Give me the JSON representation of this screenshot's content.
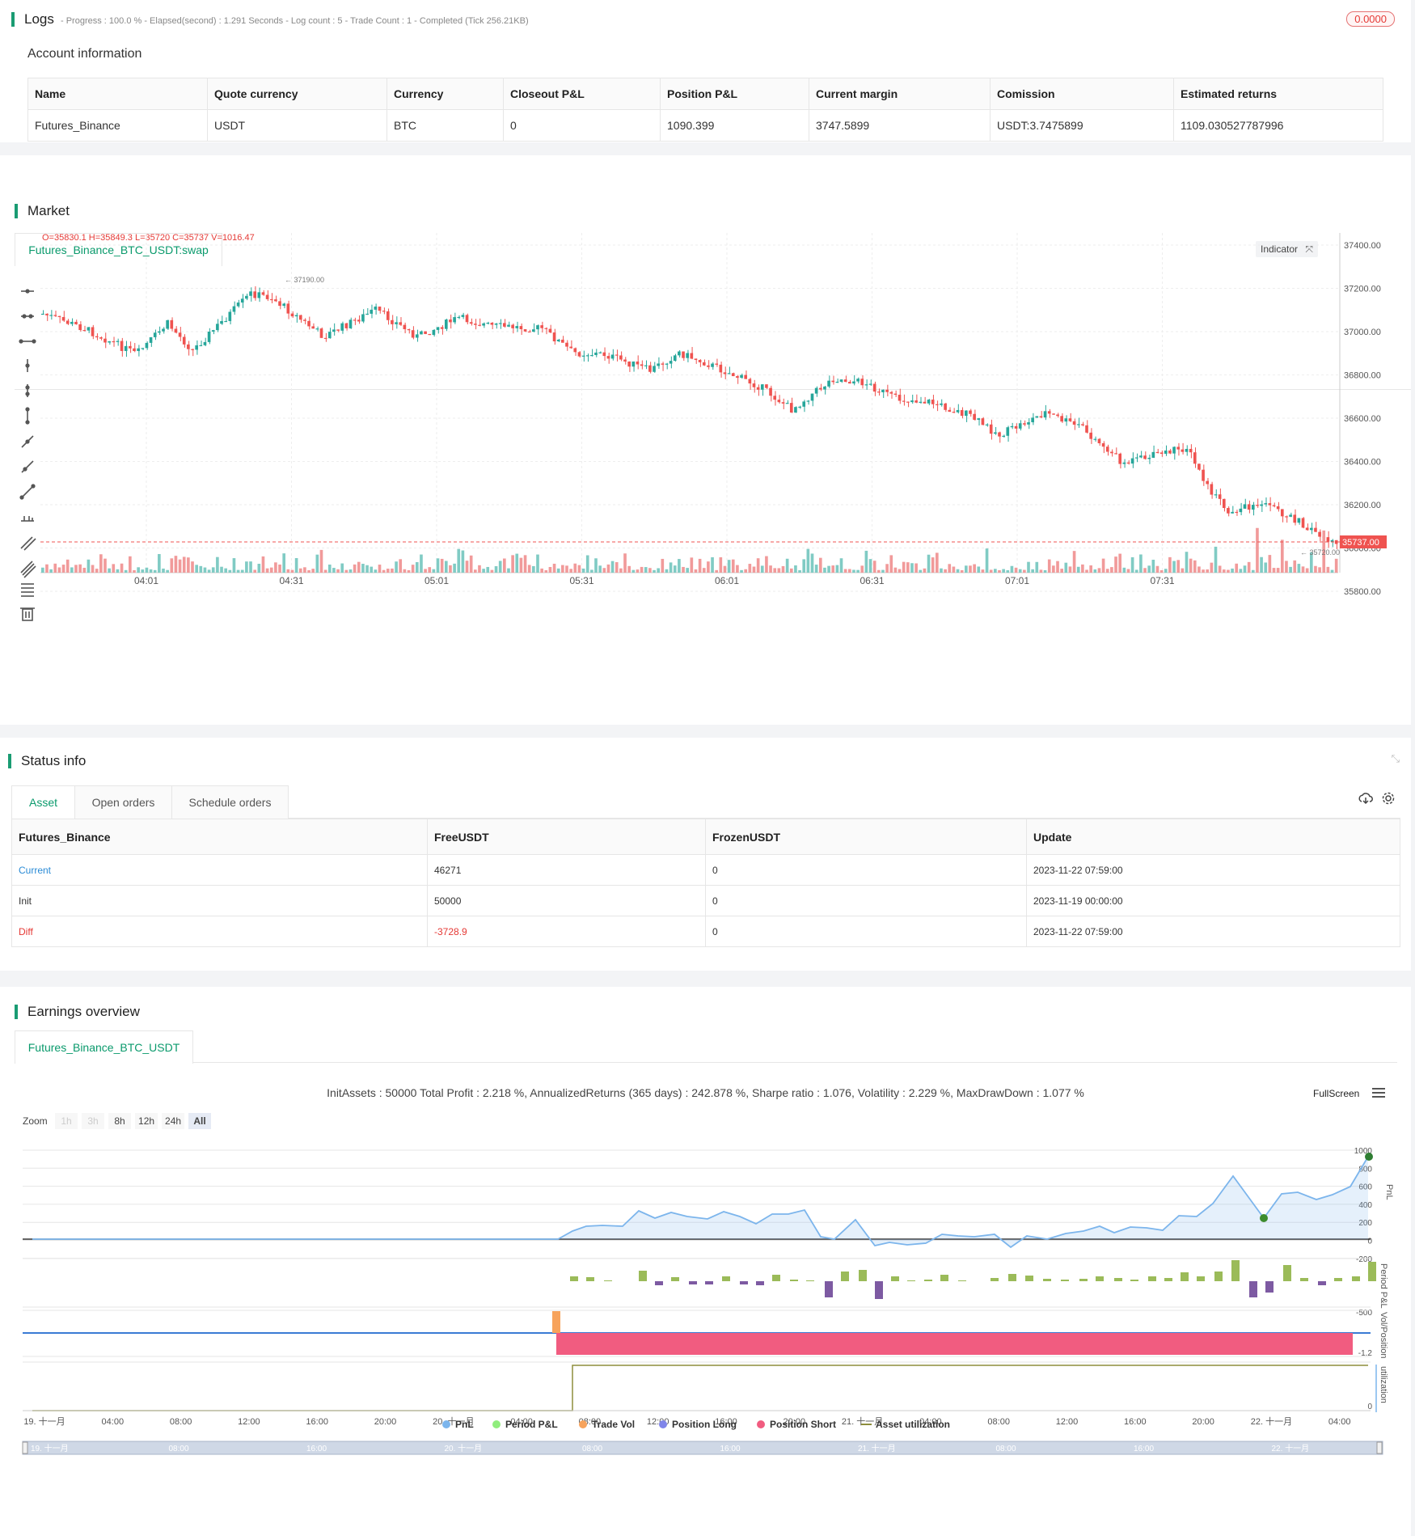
{
  "logs": {
    "title": "Logs",
    "progress": "- Progress : 100.0 % - Elapsed(second) : 1.291  Seconds - Log count : 5 - Trade Count : 1 - Completed (Tick 256.21KB)",
    "badge": "0.0000"
  },
  "account": {
    "title": "Account information",
    "headers": [
      "Name",
      "Quote currency",
      "Currency",
      "Closeout P&L",
      "Position P&L",
      "Current margin",
      "Comission",
      "Estimated returns"
    ],
    "row": [
      "Futures_Binance",
      "USDT",
      "BTC",
      "0",
      "1090.399",
      "3747.5899",
      "USDT:3.7475899",
      "1109.030527787996"
    ]
  },
  "market": {
    "title": "Market",
    "tab": "Futures_Binance_BTC_USDT:swap",
    "ohlc": "O=35830.1 H=35849.3 L=35720 C=35737 V=1016.47",
    "indicator_label": "Indicator",
    "high_label": "37190.00",
    "low_label": "35720.00",
    "current_price": "35737.00",
    "y_ticks": [
      "37400.00",
      "37200.00",
      "37000.00",
      "36800.00",
      "36600.00",
      "36400.00",
      "36200.00",
      "36000.00",
      "35800.00"
    ],
    "x_ticks": [
      "04:01",
      "04:31",
      "05:01",
      "05:31",
      "06:01",
      "06:31",
      "07:01",
      "07:31"
    ],
    "colors": {
      "up": "#26a69a",
      "down": "#ef5350",
      "up_vol": "#80cbc4",
      "down_vol": "#f19a9a"
    }
  },
  "status": {
    "title": "Status info",
    "tabs": [
      "Asset",
      "Open orders",
      "Schedule orders"
    ],
    "headers": [
      "Futures_Binance",
      "FreeUSDT",
      "FrozenUSDT",
      "Update"
    ],
    "rows": [
      [
        "Current",
        "46271",
        "0",
        "2023-11-22 07:59:00"
      ],
      [
        "Init",
        "50000",
        "0",
        "2023-11-19 00:00:00"
      ],
      [
        "Diff",
        "-3728.9",
        "0",
        "2023-11-22 07:59:00"
      ]
    ]
  },
  "earnings": {
    "title": "Earnings overview",
    "tab": "Futures_Binance_BTC_USDT",
    "summary": "InitAssets : 50000 Total Profit : 2.218 %, AnnualizedReturns (365 days) : 242.878 %, Sharpe ratio : 1.076, Volatility : 2.229 %, MaxDrawDown : 1.077 %",
    "fullscreen": "FullScreen",
    "zoom_label": "Zoom",
    "zoom_buttons": [
      "1h",
      "3h",
      "8h",
      "12h",
      "24h",
      "All"
    ],
    "pnl_ticks": [
      "1000",
      "800",
      "600",
      "400",
      "200",
      "0",
      "-200"
    ],
    "pnl_axis": "PnL",
    "period_axis": "Period P&L",
    "period_tick": "-500",
    "vol_axis": "Vol/Position",
    "vol_tick": "-1.2",
    "util_axis": "utilization",
    "util_tick": "0",
    "x_ticks": [
      "19. 十一月",
      "04:00",
      "08:00",
      "12:00",
      "16:00",
      "20:00",
      "20. 十一月",
      "04:00",
      "08:00",
      "12:00",
      "16:00",
      "20:00",
      "21. 十一月",
      "04:00",
      "08:00",
      "12:00",
      "16:00",
      "20:00",
      "22. 十一月",
      "04:00"
    ],
    "nav_ticks": [
      "19. 十一月",
      "08:00",
      "16:00",
      "20. 十一月",
      "08:00",
      "16:00",
      "21. 十一月",
      "08:00",
      "16:00",
      "22. 十一月"
    ],
    "legend": [
      "PnL",
      "Period P&L",
      "Trade Vol",
      "Position Long",
      "Position Short",
      "Asset utilization"
    ],
    "legend_colors": [
      "#7cb5ec",
      "#90ed7d",
      "#f7a35c",
      "#8085e9",
      "#f15c80",
      "#8d8d3b"
    ]
  }
}
